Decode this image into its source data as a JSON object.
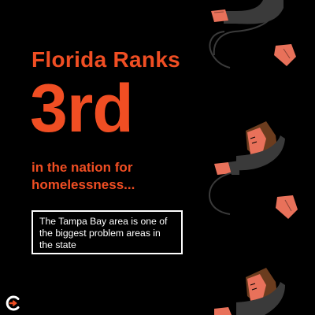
{
  "headline": "Florida Ranks",
  "rank": "3rd",
  "subline": "in the nation for homelessness...",
  "callout": "The Tampa Bay area is one of the biggest problem areas in the state",
  "colors": {
    "background": "#000000",
    "accent": "#f04e23",
    "text_light": "#ffffff",
    "skin": "#e8715a",
    "clothing": "#3a3a3a",
    "hair": "#6b3c1e"
  },
  "icons": {
    "logo": "circular-c-logo",
    "figure": "sleeping-person-illustration"
  }
}
